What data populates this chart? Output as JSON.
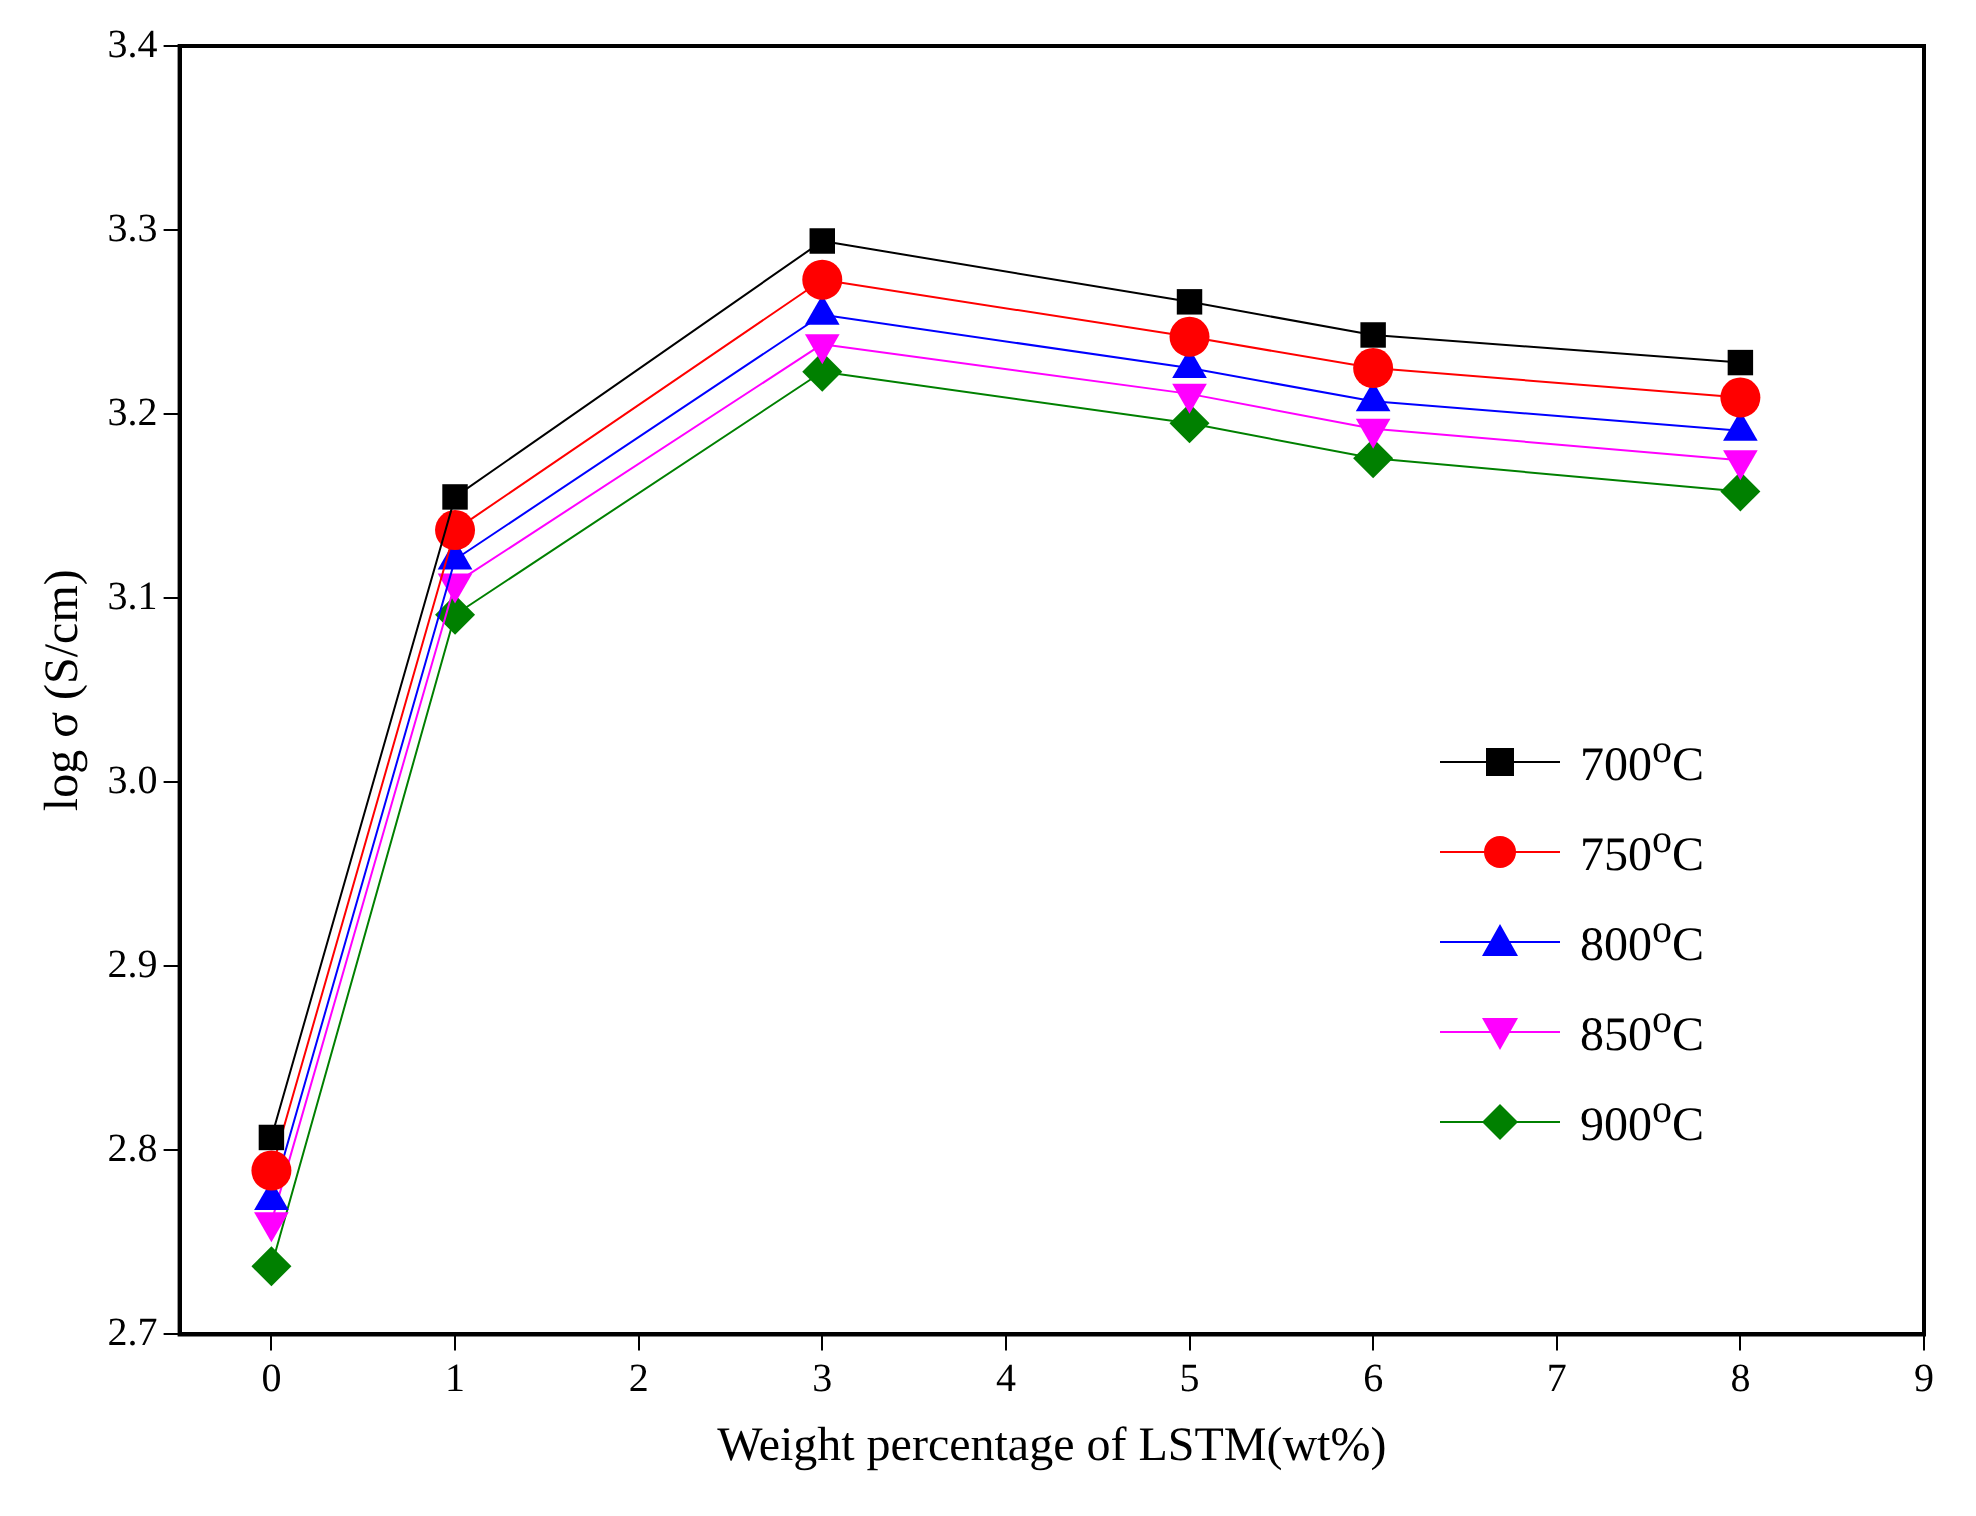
{
  "chart_data": {
    "type": "line",
    "xlabel": "Weight percentage of LSTM(wt%)",
    "ylabel": "log σ (S/cm)",
    "x": [
      0,
      1,
      3,
      5,
      6,
      8
    ],
    "xlim": [
      -0.5,
      9
    ],
    "xticks": [
      0,
      1,
      2,
      3,
      4,
      5,
      6,
      7,
      8,
      9
    ],
    "ylim": [
      2.7,
      3.4
    ],
    "yticks": [
      {
        "value": 2.7,
        "label": "2.7"
      },
      {
        "value": 2.8,
        "label": "2.8"
      },
      {
        "value": 2.9,
        "label": "2.9"
      },
      {
        "value": 3.0,
        "label": "3.0"
      },
      {
        "value": 3.1,
        "label": "3.1"
      },
      {
        "value": 3.2,
        "label": "3.2"
      },
      {
        "value": 3.3,
        "label": "3.3"
      },
      {
        "value": 3.4,
        "label": "3.4"
      }
    ],
    "grid": false,
    "legend": "right",
    "line_style": "solid",
    "series": [
      {
        "name": "700$^{o}$C",
        "color": "#000000",
        "marker": "square",
        "values": [
          2.807,
          3.155,
          3.294,
          3.261,
          3.243,
          3.228
        ]
      },
      {
        "name": "750$^{o}$C",
        "color": "#ff0000",
        "marker": "circle",
        "values": [
          2.789,
          3.137,
          3.273,
          3.242,
          3.225,
          3.209
        ]
      },
      {
        "name": "800$^{o}$C",
        "color": "#0000ff",
        "marker": "triangle",
        "values": [
          2.773,
          3.121,
          3.254,
          3.225,
          3.207,
          3.191
        ]
      },
      {
        "name": "850$^{o}$C",
        "color": "#ff00ff",
        "marker": "triangle-down",
        "values": [
          2.761,
          3.108,
          3.238,
          3.211,
          3.192,
          3.175
        ]
      },
      {
        "name": "900$^{o}$C",
        "color": "#008000",
        "marker": "diamond",
        "values": [
          2.737,
          3.091,
          3.223,
          3.195,
          3.176,
          3.158
        ]
      }
    ]
  }
}
